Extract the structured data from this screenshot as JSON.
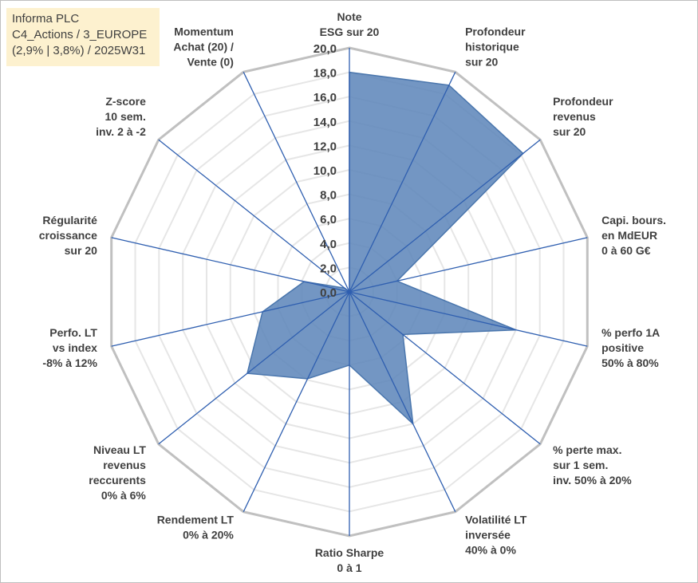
{
  "info_box": {
    "line1": "Informa PLC",
    "line2": "C4_Actions / 3_EUROPE",
    "line3": "(2,9% | 3,8%) / 2025W31"
  },
  "chart_data": {
    "type": "radar",
    "rmin": 0,
    "rmax": 20,
    "tick_values": [
      0,
      2,
      4,
      6,
      8,
      10,
      12,
      14,
      16,
      18,
      20
    ],
    "tick_labels": [
      "0,0",
      "2,0",
      "4,0",
      "6,0",
      "8,0",
      "10,0",
      "12,0",
      "14,0",
      "16,0",
      "18,0",
      "20,0"
    ],
    "colors": {
      "fill": "#5b84b8",
      "stroke": "#4a76ad",
      "spoke": "#2f5fb0",
      "grid_outer": "#c0c0c0",
      "grid_inner": "#e6e6e6",
      "text": "#404040"
    },
    "categories": [
      [
        "Note",
        "ESG sur 20"
      ],
      [
        "Profondeur",
        "historique",
        "sur 20"
      ],
      [
        "Profondeur",
        "revenus",
        "sur 20"
      ],
      [
        "Capi. bours.",
        "en MdEUR",
        "0 à 60 G€"
      ],
      [
        "% perfo 1A",
        "positive",
        "50% à 80%"
      ],
      [
        "% perte max.",
        "sur 1 sem.",
        "inv. 50% à 20%"
      ],
      [
        "Volatilité LT",
        "inversée",
        "40% à 0%"
      ],
      [
        "Ratio Sharpe",
        "0 à 1"
      ],
      [
        "Rendement LT",
        "0% à 20%"
      ],
      [
        "Niveau LT",
        "revenus",
        "reccurents",
        "0% à 6%"
      ],
      [
        "Perfo. LT",
        "vs index",
        "-8% à 12%"
      ],
      [
        "Régularité",
        "croissance",
        "sur 20"
      ],
      [
        "Z-score",
        "10 sem.",
        "inv. 2 à -2"
      ],
      [
        "Momentum",
        "Achat (20) /",
        "Vente (0)"
      ]
    ],
    "values": [
      18.0,
      18.8,
      18.2,
      4.0,
      14.0,
      5.6,
      12.0,
      6.0,
      7.9,
      10.7,
      7.3,
      3.8,
      0.5,
      0.0
    ]
  }
}
